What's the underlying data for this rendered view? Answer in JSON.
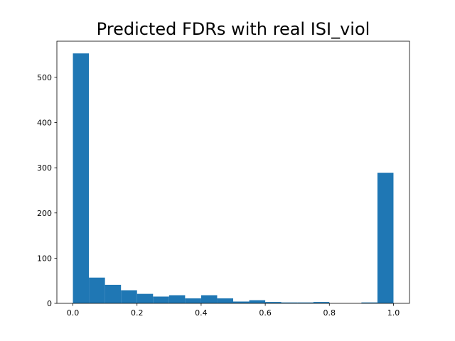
{
  "chart_data": {
    "type": "bar",
    "title": "Predicted FDRs with real ISI_viol",
    "xlabel": "",
    "ylabel": "",
    "bin_edges": [
      0.0,
      0.05,
      0.1,
      0.15,
      0.2,
      0.25,
      0.3,
      0.35,
      0.4,
      0.45,
      0.5,
      0.55,
      0.6,
      0.65,
      0.7,
      0.75,
      0.8,
      0.85,
      0.9,
      0.95,
      1.0
    ],
    "values": [
      553,
      57,
      41,
      29,
      21,
      15,
      18,
      11,
      18,
      11,
      4,
      7,
      3,
      2,
      2,
      3,
      0,
      0,
      2,
      289
    ],
    "xlim": [
      -0.05,
      1.05
    ],
    "ylim": [
      0,
      580
    ],
    "xticks": [
      0.0,
      0.2,
      0.4,
      0.6,
      0.8,
      1.0
    ],
    "xtick_labels": [
      "0.0",
      "0.2",
      "0.4",
      "0.6",
      "0.8",
      "1.0"
    ],
    "yticks": [
      0,
      100,
      200,
      300,
      400,
      500
    ],
    "ytick_labels": [
      "0",
      "100",
      "200",
      "300",
      "400",
      "500"
    ],
    "bar_color": "#1f77b4",
    "grid": false,
    "legend": "none"
  }
}
